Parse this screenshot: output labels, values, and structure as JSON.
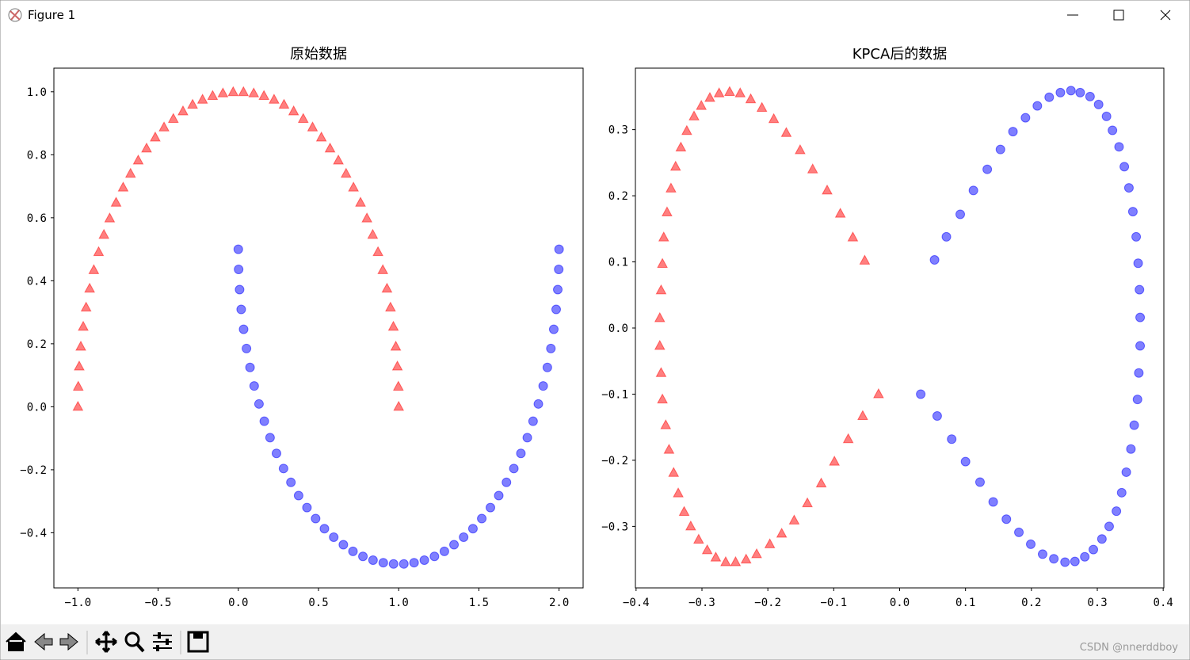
{
  "window": {
    "title": "Figure 1"
  },
  "watermark": "CSDN @nnerddboy",
  "chart_data": [
    {
      "type": "scatter",
      "title": "原始数据",
      "xlim": [
        -1.15,
        2.15
      ],
      "xticks": [
        {
          "value": -1,
          "label": "−1.0"
        },
        {
          "value": -0.5,
          "label": "−0.5"
        },
        {
          "value": 0,
          "label": "0.0"
        },
        0.5,
        {
          "value": 1,
          "label": "1.0"
        },
        1.5,
        {
          "value": 2,
          "label": "2.0"
        }
      ],
      "ylim": [
        -0.575,
        1.075
      ],
      "yticks": [
        {
          "value": -0.4,
          "label": "−0.4"
        },
        {
          "value": -0.2,
          "label": "−0.2"
        },
        {
          "value": 0,
          "label": "0.0"
        },
        0.2,
        0.4,
        0.6,
        0.8,
        {
          "value": 1,
          "label": "1.0"
        }
      ],
      "series": [
        {
          "color": "red",
          "marker": "^",
          "alpha": 0.5,
          "x": [
            1,
            0.998,
            0.992,
            0.982,
            0.967,
            0.949,
            0.927,
            0.901,
            0.871,
            0.838,
            0.802,
            0.762,
            0.718,
            0.672,
            0.624,
            0.572,
            0.518,
            0.463,
            0.405,
            0.345,
            0.285,
            0.223,
            0.16,
            0.096,
            0.032,
            -0.032,
            -0.096,
            -0.16,
            -0.223,
            -0.285,
            -0.345,
            -0.405,
            -0.463,
            -0.518,
            -0.572,
            -0.624,
            -0.672,
            -0.718,
            -0.762,
            -0.802,
            -0.838,
            -0.871,
            -0.901,
            -0.927,
            -0.949,
            -0.967,
            -0.982,
            -0.992,
            -0.998,
            -1
          ],
          "values": [
            0,
            0.064,
            0.128,
            0.191,
            0.254,
            0.315,
            0.375,
            0.434,
            0.491,
            0.546,
            0.598,
            0.648,
            0.696,
            0.74,
            0.782,
            0.82,
            0.855,
            0.887,
            0.914,
            0.938,
            0.959,
            0.975,
            0.987,
            0.995,
            0.999,
            0.999,
            0.995,
            0.987,
            0.975,
            0.959,
            0.938,
            0.914,
            0.887,
            0.855,
            0.82,
            0.782,
            0.74,
            0.696,
            0.648,
            0.598,
            0.546,
            0.491,
            0.434,
            0.375,
            0.315,
            0.254,
            0.191,
            0.128,
            0.064,
            0
          ]
        },
        {
          "color": "blue",
          "marker": "o",
          "alpha": 0.5,
          "x": [
            0,
            0.002,
            0.008,
            0.018,
            0.033,
            0.051,
            0.073,
            0.099,
            0.129,
            0.162,
            0.198,
            0.238,
            0.282,
            0.328,
            0.376,
            0.428,
            0.482,
            0.537,
            0.595,
            0.655,
            0.715,
            0.777,
            0.84,
            0.904,
            0.968,
            1.032,
            1.096,
            1.16,
            1.223,
            1.285,
            1.345,
            1.405,
            1.463,
            1.518,
            1.572,
            1.624,
            1.672,
            1.718,
            1.762,
            1.802,
            1.838,
            1.871,
            1.901,
            1.927,
            1.949,
            1.967,
            1.982,
            1.992,
            1.998,
            2
          ],
          "values": [
            0.5,
            0.436,
            0.372,
            0.309,
            0.246,
            0.185,
            0.125,
            0.066,
            0.009,
            -0.046,
            -0.098,
            -0.148,
            -0.196,
            -0.24,
            -0.282,
            -0.32,
            -0.355,
            -0.387,
            -0.414,
            -0.438,
            -0.459,
            -0.475,
            -0.487,
            -0.495,
            -0.499,
            -0.499,
            -0.495,
            -0.487,
            -0.475,
            -0.459,
            -0.438,
            -0.414,
            -0.387,
            -0.355,
            -0.32,
            -0.282,
            -0.24,
            -0.196,
            -0.148,
            -0.098,
            -0.046,
            0.009,
            0.066,
            0.125,
            0.185,
            0.246,
            0.309,
            0.372,
            0.436,
            0.5
          ]
        }
      ]
    },
    {
      "type": "scatter",
      "title": "KPCA后的数据",
      "xlim": [
        -0.401,
        0.401
      ],
      "xticks": [
        {
          "value": -0.4,
          "label": "−0.4"
        },
        {
          "value": -0.3,
          "label": "−0.3"
        },
        {
          "value": -0.2,
          "label": "−0.2"
        },
        {
          "value": -0.1,
          "label": "−0.1"
        },
        {
          "value": 0,
          "label": "0.0"
        },
        0.1,
        0.2,
        0.3,
        0.4
      ],
      "ylim": [
        -0.393,
        0.393
      ],
      "yticks": [
        {
          "value": -0.3,
          "label": "−0.3"
        },
        {
          "value": -0.2,
          "label": "−0.2"
        },
        {
          "value": -0.1,
          "label": "−0.1"
        },
        {
          "value": 0,
          "label": "0.0"
        },
        0.1,
        0.2,
        0.3
      ],
      "series": [
        {
          "color": "red",
          "marker": "^",
          "alpha": 0.5,
          "x": [
            -0.053,
            -0.071,
            -0.09,
            -0.11,
            -0.132,
            -0.151,
            -0.172,
            -0.191,
            -0.209,
            -0.226,
            -0.242,
            -0.258,
            -0.274,
            -0.288,
            -0.301,
            -0.312,
            -0.323,
            -0.332,
            -0.34,
            -0.347,
            -0.353,
            -0.358,
            -0.36,
            -0.362,
            -0.364,
            -0.364,
            -0.362,
            -0.36,
            -0.355,
            -0.35,
            -0.343,
            -0.336,
            -0.327,
            -0.317,
            -0.305,
            -0.292,
            -0.279,
            -0.264,
            -0.249,
            -0.233,
            -0.217,
            -0.197,
            -0.179,
            -0.16,
            -0.14,
            -0.119,
            -0.099,
            -0.078,
            -0.056,
            -0.032
          ],
          "values": [
            0.102,
            0.137,
            0.173,
            0.208,
            0.24,
            0.269,
            0.295,
            0.316,
            0.333,
            0.346,
            0.355,
            0.357,
            0.355,
            0.348,
            0.336,
            0.32,
            0.298,
            0.273,
            0.244,
            0.211,
            0.175,
            0.137,
            0.097,
            0.057,
            0.015,
            -0.027,
            -0.068,
            -0.108,
            -0.147,
            -0.184,
            -0.219,
            -0.25,
            -0.278,
            -0.3,
            -0.32,
            -0.336,
            -0.347,
            -0.354,
            -0.354,
            -0.35,
            -0.342,
            -0.327,
            -0.311,
            -0.291,
            -0.265,
            -0.235,
            -0.202,
            -0.168,
            -0.133,
            -0.1
          ]
        },
        {
          "color": "blue",
          "marker": "o",
          "alpha": 0.5,
          "x": [
            0.053,
            0.071,
            0.092,
            0.112,
            0.133,
            0.153,
            0.172,
            0.191,
            0.209,
            0.227,
            0.244,
            0.26,
            0.274,
            0.289,
            0.302,
            0.314,
            0.323,
            0.333,
            0.341,
            0.348,
            0.354,
            0.359,
            0.362,
            0.364,
            0.365,
            0.365,
            0.363,
            0.361,
            0.356,
            0.351,
            0.344,
            0.337,
            0.329,
            0.318,
            0.307,
            0.294,
            0.281,
            0.266,
            0.251,
            0.234,
            0.217,
            0.199,
            0.181,
            0.162,
            0.142,
            0.122,
            0.1,
            0.079,
            0.057,
            0.032
          ],
          "values": [
            0.103,
            0.138,
            0.172,
            0.208,
            0.24,
            0.27,
            0.297,
            0.318,
            0.336,
            0.349,
            0.356,
            0.359,
            0.356,
            0.35,
            0.338,
            0.32,
            0.299,
            0.274,
            0.244,
            0.212,
            0.176,
            0.138,
            0.098,
            0.058,
            0.016,
            -0.027,
            -0.068,
            -0.108,
            -0.147,
            -0.183,
            -0.218,
            -0.249,
            -0.277,
            -0.3,
            -0.319,
            -0.335,
            -0.346,
            -0.353,
            -0.354,
            -0.349,
            -0.342,
            -0.327,
            -0.309,
            -0.289,
            -0.263,
            -0.233,
            -0.202,
            -0.168,
            -0.133,
            -0.1
          ]
        }
      ]
    }
  ]
}
